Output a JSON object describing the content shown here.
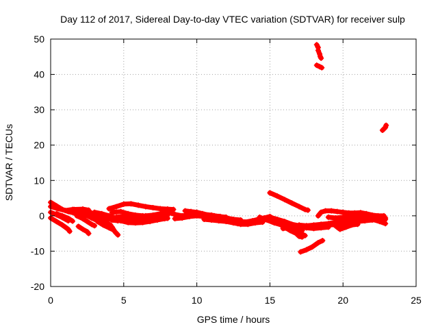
{
  "chart_data": {
    "type": "scatter",
    "title": "Day 112 of 2017, Sidereal Day-to-day VTEC variation (SDTVAR) for receiver sulp",
    "xlabel": "GPS time / hours",
    "ylabel": "SDTVAR / TECUs",
    "xlim": [
      0,
      25
    ],
    "ylim": [
      -20,
      50
    ],
    "xticks": [
      0,
      5,
      10,
      15,
      20,
      25
    ],
    "yticks": [
      -20,
      -10,
      0,
      10,
      20,
      30,
      40,
      50
    ],
    "grid": true,
    "color": "#ff0000",
    "marker": "plus",
    "tracks": [
      [
        [
          0.0,
          3.8
        ],
        [
          0.4,
          2.8
        ],
        [
          0.8,
          1.8
        ],
        [
          1.2,
          1.2
        ],
        [
          1.6,
          0.8
        ],
        [
          2.0,
          0.9
        ],
        [
          2.4,
          0.6
        ]
      ],
      [
        [
          0.0,
          2.6
        ],
        [
          0.5,
          2.0
        ],
        [
          1.0,
          1.5
        ],
        [
          1.5,
          1.8
        ],
        [
          2.2,
          1.9
        ],
        [
          2.6,
          1.6
        ]
      ],
      [
        [
          0.0,
          1.0
        ],
        [
          0.4,
          0.3
        ],
        [
          0.8,
          -0.5
        ],
        [
          1.2,
          -1.4
        ]
      ],
      [
        [
          0.0,
          -0.6
        ],
        [
          0.4,
          -1.6
        ],
        [
          0.8,
          -2.6
        ],
        [
          1.0,
          -3.2
        ],
        [
          1.2,
          -3.8
        ],
        [
          1.3,
          -4.4
        ]
      ],
      [
        [
          0.4,
          0.6
        ],
        [
          0.8,
          0.0
        ],
        [
          1.2,
          -0.7
        ],
        [
          1.5,
          -1.5
        ]
      ],
      [
        [
          1.6,
          1.8
        ],
        [
          2.0,
          1.0
        ],
        [
          2.4,
          0.2
        ],
        [
          2.8,
          -0.6
        ],
        [
          3.1,
          -1.2
        ]
      ],
      [
        [
          1.8,
          0.0
        ],
        [
          2.2,
          -0.8
        ],
        [
          2.5,
          -1.6
        ],
        [
          2.8,
          -2.4
        ],
        [
          3.0,
          -2.8
        ]
      ],
      [
        [
          1.9,
          -3.0
        ],
        [
          2.2,
          -3.8
        ],
        [
          2.5,
          -4.5
        ],
        [
          2.6,
          -5.0
        ]
      ],
      [
        [
          2.4,
          0.8
        ],
        [
          2.8,
          0.4
        ],
        [
          3.2,
          -0.2
        ],
        [
          3.6,
          -0.8
        ],
        [
          3.8,
          -1.2
        ]
      ],
      [
        [
          2.6,
          1.2
        ],
        [
          3.0,
          0.4
        ],
        [
          3.4,
          -0.6
        ],
        [
          3.8,
          -1.8
        ],
        [
          4.2,
          -3.2
        ],
        [
          4.4,
          -4.5
        ],
        [
          4.6,
          -5.4
        ]
      ],
      [
        [
          3.0,
          -0.4
        ],
        [
          3.4,
          -1.2
        ],
        [
          3.8,
          -2.0
        ],
        [
          4.1,
          -2.6
        ]
      ],
      [
        [
          3.2,
          -1.6
        ],
        [
          3.6,
          -2.6
        ],
        [
          4.0,
          -3.4
        ],
        [
          4.3,
          -4.0
        ]
      ],
      [
        [
          3.0,
          1.0
        ],
        [
          3.5,
          0.6
        ],
        [
          4.0,
          0.0
        ],
        [
          4.5,
          -0.6
        ],
        [
          5.0,
          -1.4
        ],
        [
          5.4,
          -1.8
        ]
      ],
      [
        [
          3.3,
          0.0
        ],
        [
          3.8,
          -0.6
        ],
        [
          4.2,
          -1.2
        ],
        [
          4.6,
          -1.4
        ]
      ],
      [
        [
          4.0,
          2.0
        ],
        [
          4.5,
          2.6
        ],
        [
          5.0,
          3.3
        ],
        [
          5.5,
          3.4
        ],
        [
          6.0,
          3.0
        ],
        [
          6.5,
          2.6
        ],
        [
          7.0,
          2.3
        ],
        [
          7.5,
          2.0
        ],
        [
          8.0,
          1.9
        ],
        [
          8.4,
          1.8
        ]
      ],
      [
        [
          4.2,
          1.0
        ],
        [
          4.8,
          1.2
        ],
        [
          5.3,
          0.6
        ],
        [
          5.8,
          0.2
        ],
        [
          6.3,
          0.0
        ],
        [
          6.8,
          -0.2
        ]
      ],
      [
        [
          4.3,
          -1.2
        ],
        [
          4.8,
          -1.4
        ],
        [
          5.3,
          -1.9
        ],
        [
          5.8,
          -2.0
        ],
        [
          6.3,
          -1.9
        ],
        [
          6.8,
          -1.6
        ],
        [
          7.3,
          -1.2
        ],
        [
          7.8,
          -0.8
        ],
        [
          8.0,
          -0.7
        ]
      ],
      [
        [
          4.5,
          -0.4
        ],
        [
          5.0,
          -0.2
        ],
        [
          5.5,
          -0.8
        ],
        [
          6.0,
          -1.0
        ],
        [
          6.5,
          -0.6
        ],
        [
          7.0,
          -0.4
        ],
        [
          7.5,
          -0.2
        ],
        [
          8.0,
          0.2
        ]
      ],
      [
        [
          5.5,
          -0.6
        ],
        [
          6.0,
          -0.2
        ],
        [
          6.5,
          0.0
        ],
        [
          7.0,
          0.2
        ],
        [
          7.5,
          0.6
        ],
        [
          8.0,
          1.0
        ],
        [
          8.5,
          0.4
        ],
        [
          9.0,
          0.0
        ],
        [
          9.5,
          0.4
        ],
        [
          10.0,
          0.6
        ],
        [
          10.5,
          0.4
        ],
        [
          11.0,
          0.2
        ],
        [
          11.5,
          -0.2
        ],
        [
          12.0,
          -0.4
        ]
      ],
      [
        [
          7.0,
          -1.0
        ],
        [
          7.3,
          -0.3
        ],
        [
          7.6,
          0.4
        ],
        [
          7.9,
          1.0
        ],
        [
          8.1,
          1.4
        ]
      ],
      [
        [
          8.5,
          -0.8
        ],
        [
          9.0,
          -0.6
        ],
        [
          9.5,
          -0.2
        ],
        [
          10.0,
          0.0
        ],
        [
          10.5,
          -0.2
        ],
        [
          11.0,
          -0.4
        ],
        [
          11.5,
          -0.6
        ],
        [
          12.0,
          -1.0
        ],
        [
          12.5,
          -1.4
        ],
        [
          13.0,
          -1.6
        ],
        [
          13.5,
          -1.8
        ],
        [
          14.0,
          -1.6
        ],
        [
          14.5,
          -1.2
        ],
        [
          15.0,
          -1.0
        ]
      ],
      [
        [
          9.2,
          1.4
        ],
        [
          9.6,
          1.2
        ],
        [
          10.0,
          1.0
        ],
        [
          10.4,
          0.6
        ],
        [
          10.8,
          0.2
        ],
        [
          11.2,
          0.0
        ],
        [
          11.6,
          -0.2
        ],
        [
          12.0,
          -0.6
        ],
        [
          12.5,
          -1.0
        ],
        [
          13.0,
          -1.2
        ]
      ],
      [
        [
          10.5,
          -1.0
        ],
        [
          11.0,
          -1.2
        ],
        [
          11.5,
          -1.4
        ],
        [
          12.0,
          -1.6
        ],
        [
          12.5,
          -2.0
        ],
        [
          13.0,
          -2.4
        ],
        [
          13.5,
          -2.4
        ],
        [
          14.0,
          -2.0
        ],
        [
          14.5,
          -1.8
        ]
      ],
      [
        [
          12.8,
          -2.2
        ],
        [
          13.3,
          -1.8
        ],
        [
          13.8,
          -1.4
        ],
        [
          14.2,
          -1.0
        ],
        [
          14.6,
          -0.6
        ],
        [
          15.0,
          -0.2
        ],
        [
          15.3,
          -1.0
        ],
        [
          15.7,
          -2.2
        ],
        [
          16.0,
          -3.2
        ],
        [
          16.4,
          -4.0
        ],
        [
          16.8,
          -4.6
        ],
        [
          17.2,
          -5.2
        ],
        [
          17.4,
          -5.6
        ]
      ],
      [
        [
          14.3,
          -0.4
        ],
        [
          14.8,
          -1.2
        ],
        [
          15.3,
          -2.0
        ],
        [
          15.8,
          -2.6
        ],
        [
          16.3,
          -3.2
        ],
        [
          16.8,
          -3.8
        ],
        [
          17.2,
          -4.2
        ]
      ],
      [
        [
          15.0,
          -0.4
        ],
        [
          15.5,
          -1.0
        ],
        [
          16.0,
          -1.6
        ],
        [
          16.5,
          -2.4
        ],
        [
          17.0,
          -2.8
        ],
        [
          17.5,
          -3.0
        ],
        [
          18.0,
          -3.0
        ],
        [
          18.5,
          -2.8
        ],
        [
          19.0,
          -2.6
        ],
        [
          19.5,
          -2.5
        ],
        [
          20.0,
          -2.4
        ],
        [
          20.5,
          -2.0
        ],
        [
          21.0,
          -1.6
        ],
        [
          21.5,
          -1.4
        ],
        [
          22.0,
          -1.2
        ],
        [
          22.5,
          -1.0
        ],
        [
          22.9,
          -1.0
        ]
      ],
      [
        [
          15.2,
          -1.2
        ],
        [
          15.6,
          -2.2
        ],
        [
          16.0,
          -3.2
        ],
        [
          16.4,
          -4.2
        ],
        [
          16.8,
          -5.0
        ],
        [
          17.0,
          -5.8
        ],
        [
          17.2,
          -6.0
        ]
      ],
      [
        [
          15.9,
          -3.6
        ],
        [
          16.4,
          -3.4
        ],
        [
          17.0,
          -3.2
        ],
        [
          17.5,
          -3.4
        ],
        [
          18.0,
          -3.6
        ],
        [
          18.5,
          -3.4
        ],
        [
          19.0,
          -3.2
        ]
      ],
      [
        [
          17.0,
          -2.6
        ],
        [
          17.5,
          -2.8
        ],
        [
          18.0,
          -2.6
        ],
        [
          18.5,
          -2.4
        ],
        [
          19.0,
          -2.2
        ],
        [
          19.5,
          -1.8
        ],
        [
          20.0,
          -1.4
        ],
        [
          20.5,
          -1.0
        ],
        [
          21.0,
          -0.8
        ],
        [
          21.5,
          -0.8
        ],
        [
          22.0,
          -1.0
        ],
        [
          22.5,
          -1.6
        ],
        [
          22.9,
          -2.2
        ]
      ],
      [
        [
          15.0,
          6.5
        ],
        [
          15.5,
          5.6
        ],
        [
          16.0,
          4.6
        ],
        [
          16.5,
          3.6
        ],
        [
          17.0,
          2.6
        ],
        [
          17.4,
          1.8
        ],
        [
          17.6,
          1.6
        ]
      ],
      [
        [
          17.1,
          -10.2
        ],
        [
          17.5,
          -9.6
        ],
        [
          17.9,
          -8.8
        ],
        [
          18.3,
          -7.6
        ],
        [
          18.6,
          -7.0
        ]
      ],
      [
        [
          18.3,
          0.0
        ],
        [
          18.5,
          1.0
        ],
        [
          18.8,
          1.4
        ],
        [
          19.2,
          1.4
        ],
        [
          19.6,
          1.2
        ],
        [
          20.0,
          1.0
        ],
        [
          20.4,
          0.8
        ],
        [
          20.8,
          0.8
        ],
        [
          21.2,
          0.9
        ],
        [
          21.6,
          0.6
        ],
        [
          22.0,
          0.2
        ],
        [
          22.4,
          0.0
        ],
        [
          22.8,
          0.0
        ]
      ],
      [
        [
          19.0,
          -0.4
        ],
        [
          19.5,
          -0.6
        ],
        [
          20.0,
          -0.4
        ],
        [
          20.5,
          0.0
        ],
        [
          21.0,
          0.2
        ],
        [
          21.5,
          0.0
        ],
        [
          22.0,
          -0.4
        ],
        [
          22.5,
          -0.8
        ],
        [
          22.9,
          -0.6
        ]
      ],
      [
        [
          19.3,
          -2.2
        ],
        [
          19.6,
          -3.2
        ],
        [
          19.8,
          -3.8
        ],
        [
          20.2,
          -3.2
        ],
        [
          20.6,
          -2.6
        ],
        [
          21.0,
          -2.4
        ]
      ],
      [
        [
          18.2,
          48.4
        ],
        [
          18.3,
          47.6
        ]
      ],
      [
        [
          18.3,
          46.8
        ],
        [
          18.4,
          45.8
        ],
        [
          18.45,
          45.0
        ],
        [
          18.5,
          44.6
        ]
      ],
      [
        [
          18.2,
          42.6
        ],
        [
          18.4,
          42.2
        ],
        [
          18.55,
          41.9
        ]
      ],
      [
        [
          22.7,
          24.2
        ],
        [
          22.9,
          25.0
        ],
        [
          22.95,
          25.6
        ]
      ]
    ]
  }
}
